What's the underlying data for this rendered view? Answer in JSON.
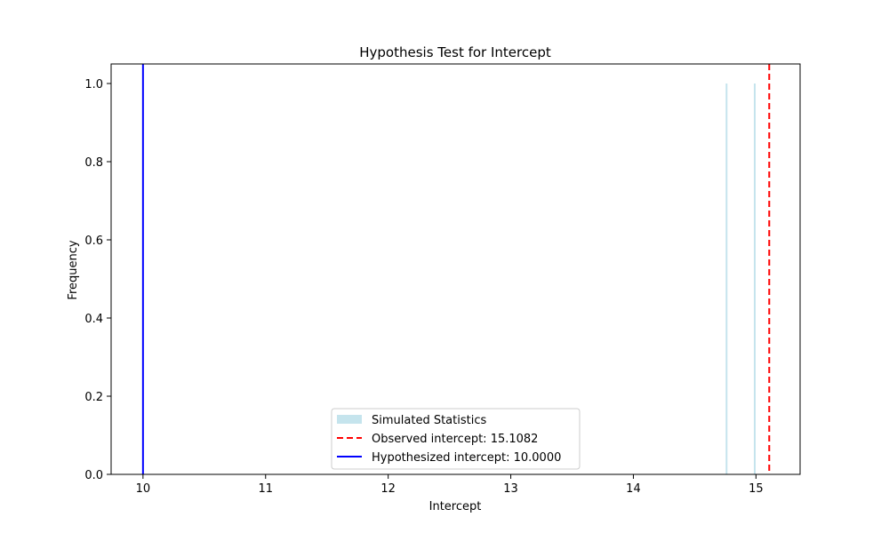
{
  "chart_data": {
    "type": "bar",
    "title": "Hypothesis Test for Intercept",
    "xlabel": "Intercept",
    "ylabel": "Frequency",
    "xlim": [
      9.74,
      15.36
    ],
    "ylim": [
      0,
      1.05
    ],
    "xticks": [
      10,
      11,
      12,
      13,
      14,
      15
    ],
    "xtick_labels": [
      "10",
      "11",
      "12",
      "13",
      "14",
      "15"
    ],
    "yticks": [
      0.0,
      0.2,
      0.4,
      0.6,
      0.8,
      1.0
    ],
    "ytick_labels": [
      "0.0",
      "0.2",
      "0.4",
      "0.6",
      "0.8",
      "1.0"
    ],
    "grid": false,
    "legend_position": "bottom-center",
    "series": [
      {
        "name": "Simulated Statistics",
        "kind": "histogram",
        "color": "#add8e6",
        "bins": [
          {
            "x": 14.76,
            "value": 1
          },
          {
            "x": 14.99,
            "value": 1
          }
        ]
      },
      {
        "name": "Observed intercept: 15.1082",
        "kind": "vline",
        "x": 15.1082,
        "color": "#ff0000",
        "style": "dashed"
      },
      {
        "name": "Hypothesized intercept: 10.0000",
        "kind": "vline",
        "x": 10.0,
        "color": "#0000ff",
        "style": "solid"
      }
    ]
  }
}
